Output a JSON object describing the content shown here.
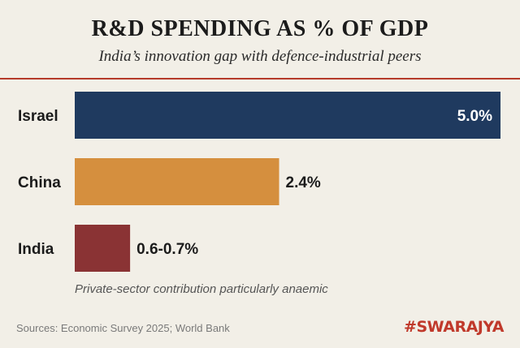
{
  "header": {
    "title": "R&D SPENDING AS % OF GDP",
    "subtitle": "India’s innovation gap with defence-industrial peers"
  },
  "footer": {
    "note": "Private-sector contribution particularly anaemic",
    "sources": "Sources: Economic Survey 2025; World Bank",
    "brand": "#SWARAJYA"
  },
  "colors": {
    "accent_rule": "#b53a2a",
    "brand": "#c0392b"
  },
  "chart_data": {
    "type": "bar",
    "orientation": "horizontal",
    "title": "R&D SPENDING AS % OF GDP",
    "subtitle": "India’s innovation gap with defence-industrial peers",
    "categories": [
      "Israel",
      "China",
      "India"
    ],
    "values": [
      5.0,
      2.4,
      0.65
    ],
    "data_labels": [
      "5.0%",
      "2.4%",
      "0.6-0.7%"
    ],
    "colors": [
      "#1f3a5f",
      "#d58f3e",
      "#8a3334"
    ],
    "label_positions": [
      "inside",
      "outside",
      "outside"
    ],
    "xlim": [
      0,
      5.0
    ],
    "grid": false,
    "legend": "none"
  }
}
